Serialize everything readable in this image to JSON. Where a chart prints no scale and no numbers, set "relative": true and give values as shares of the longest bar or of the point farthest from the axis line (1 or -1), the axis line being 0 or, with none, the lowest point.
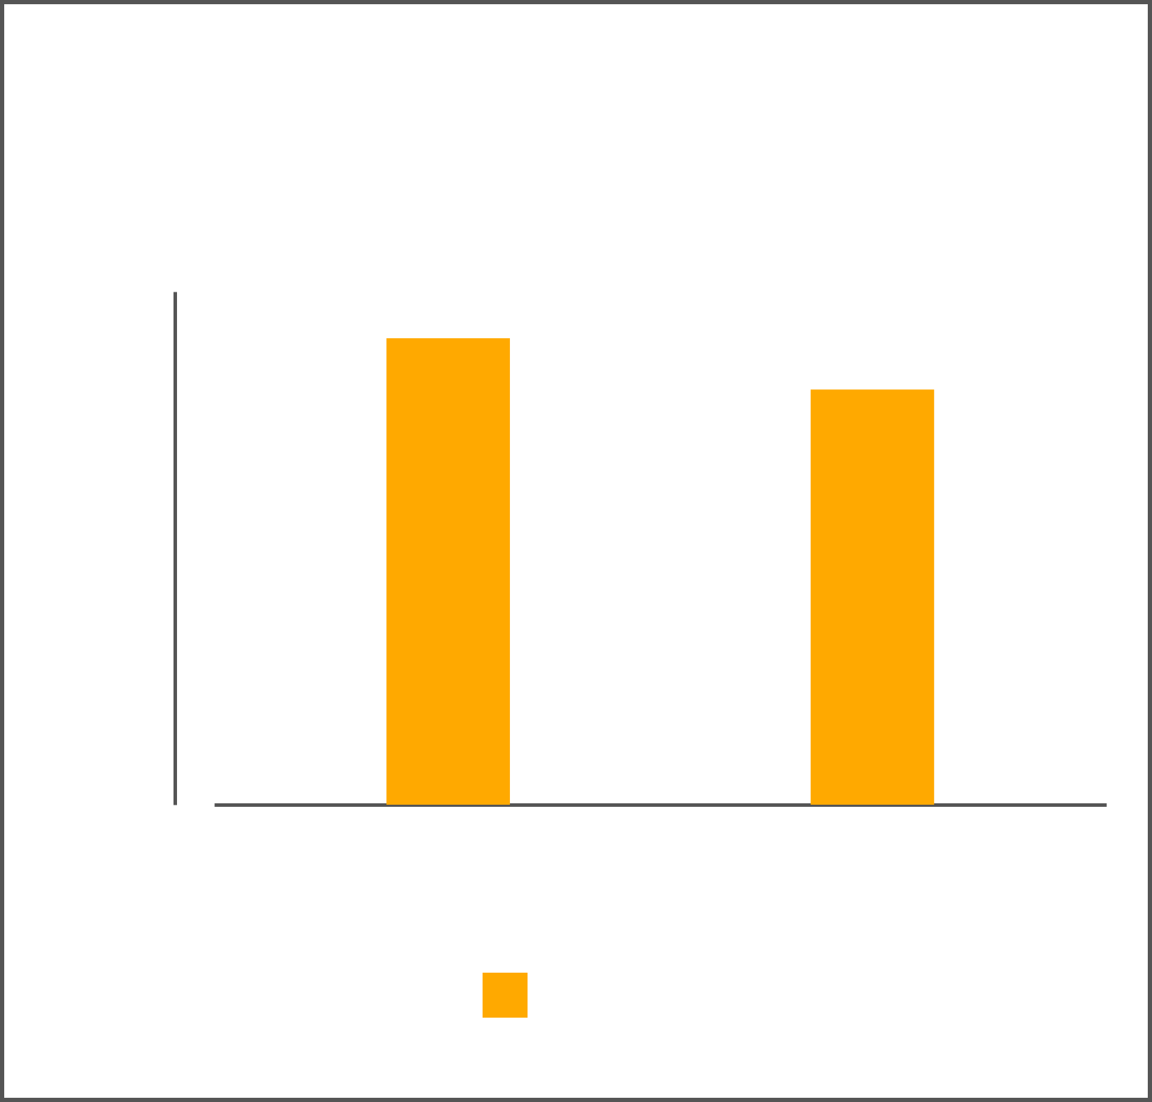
{
  "chart_data": {
    "type": "bar",
    "relative": true,
    "categories": [
      null,
      null
    ],
    "series": [
      {
        "color": "#ffa900",
        "values": [
          1,
          0.89
        ]
      }
    ],
    "grid": false
  }
}
